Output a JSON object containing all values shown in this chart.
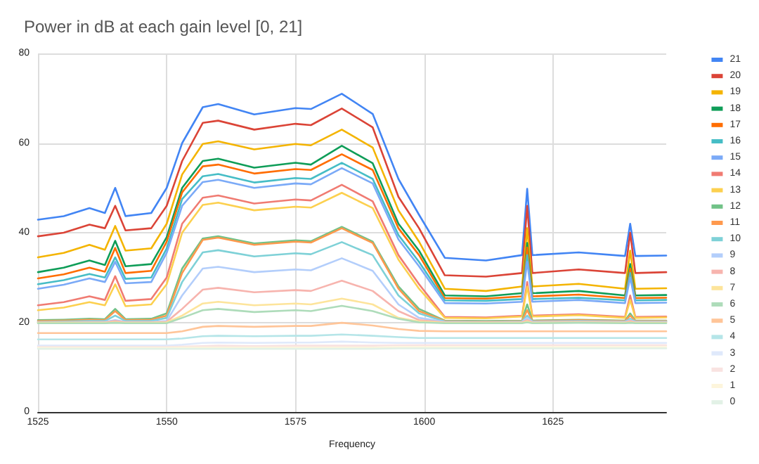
{
  "chart_data": {
    "type": "line",
    "title": "Power in dB at each gain level [0, 21]",
    "xlabel": "Frequency",
    "x": [
      1525,
      1530,
      1535,
      1538,
      1540,
      1542,
      1547,
      1550,
      1553,
      1557,
      1560,
      1567,
      1575,
      1578,
      1584,
      1590,
      1595,
      1599,
      1604,
      1612,
      1619,
      1620,
      1621,
      1630,
      1639,
      1640,
      1641,
      1647
    ],
    "xlim": [
      1525,
      1647
    ],
    "xticks": [
      1525,
      1550,
      1575,
      1600,
      1625
    ],
    "ylim": [
      0,
      80
    ],
    "yticks": [
      0,
      20,
      40,
      60,
      80
    ],
    "grid": true,
    "legend": "right",
    "marker": "none",
    "line_style": "solid",
    "series": [
      {
        "name": "21",
        "color": "#4285f4",
        "values": [
          42.9,
          43.7,
          45.5,
          44.4,
          50,
          43.7,
          44.4,
          50,
          60,
          68,
          68.7,
          66.4,
          67.8,
          67.6,
          71,
          66.5,
          52,
          44,
          34.4,
          33.8,
          35,
          49.8,
          35,
          35.6,
          34.8,
          42,
          34.8,
          34.9
        ]
      },
      {
        "name": "20",
        "color": "#db4437",
        "values": [
          39.2,
          40,
          41.8,
          41,
          46,
          40.5,
          41,
          46,
          56,
          64.5,
          65,
          63,
          64.3,
          64,
          67.7,
          63.5,
          48,
          41,
          30.5,
          30.2,
          31,
          46,
          31,
          31.8,
          31,
          40,
          31,
          31.2
        ]
      },
      {
        "name": "19",
        "color": "#f4b400",
        "values": [
          34.5,
          35.5,
          37.3,
          36.2,
          41.5,
          36,
          36.5,
          42,
          53,
          59.8,
          60.4,
          58.6,
          59.8,
          59.5,
          63,
          59,
          45,
          38,
          27.5,
          27,
          28,
          41,
          28,
          28.6,
          27.5,
          36,
          27.5,
          27.6
        ]
      },
      {
        "name": "18",
        "color": "#0f9d58",
        "values": [
          31.2,
          32.2,
          33.8,
          32.8,
          38.2,
          32.5,
          33,
          39,
          50,
          56,
          56.5,
          54.5,
          55.6,
          55.2,
          59.4,
          55.5,
          42,
          36,
          26,
          25.8,
          26.5,
          37.7,
          26.5,
          27,
          26,
          33,
          26,
          26.1
        ]
      },
      {
        "name": "17",
        "color": "#ff6d01",
        "values": [
          29.8,
          30.7,
          32.2,
          31.3,
          36.6,
          31,
          31.5,
          38,
          49,
          54.8,
          55.2,
          53.2,
          54.2,
          54,
          57.5,
          54,
          41,
          35,
          25.4,
          25.3,
          25.8,
          36.7,
          25.8,
          26.2,
          25.4,
          32,
          25.4,
          25.5
        ]
      },
      {
        "name": "16",
        "color": "#46bdc6",
        "values": [
          28.5,
          29.4,
          30.8,
          30,
          34.5,
          29.7,
          30,
          36.5,
          47.5,
          52.6,
          53.1,
          51.2,
          52.2,
          52,
          55.6,
          52,
          39.5,
          33.5,
          24.9,
          24.8,
          25.2,
          35,
          25.2,
          25.5,
          24.9,
          31,
          24.9,
          25
        ]
      },
      {
        "name": "15",
        "color": "#7baaf7",
        "values": [
          27.5,
          28.4,
          29.8,
          29,
          33.5,
          28.7,
          29,
          35.5,
          46,
          51.3,
          51.8,
          50,
          51,
          50.8,
          54.4,
          51,
          38.5,
          32.5,
          24.3,
          24.2,
          24.6,
          33.5,
          24.6,
          25,
          24.3,
          30,
          24.3,
          24.4
        ]
      },
      {
        "name": "14",
        "color": "#f07b72",
        "values": [
          23.8,
          24.5,
          25.8,
          25,
          30.3,
          24.8,
          25.2,
          30,
          42,
          47.8,
          48.3,
          46.5,
          47.4,
          47.2,
          50.7,
          47,
          35,
          28.5,
          21.2,
          21.1,
          21.5,
          29,
          21.5,
          21.8,
          21.2,
          26,
          21.2,
          21.3
        ]
      },
      {
        "name": "13",
        "color": "#fcd04f",
        "values": [
          22.7,
          23.3,
          24.5,
          23.8,
          28.5,
          23.6,
          24,
          28.5,
          40,
          46.2,
          46.7,
          45,
          45.8,
          45.6,
          48.9,
          45.5,
          34,
          27.5,
          21,
          20.9,
          21.3,
          28,
          21.3,
          21.6,
          21,
          25,
          21,
          21.1
        ]
      },
      {
        "name": "12",
        "color": "#71c287",
        "values": [
          20.5,
          20.6,
          20.8,
          20.7,
          23,
          20.7,
          20.8,
          22,
          32,
          38.7,
          39.2,
          37.6,
          38.3,
          38.1,
          41.3,
          38,
          28,
          23,
          20.4,
          20.3,
          20.4,
          24,
          20.4,
          20.6,
          20.4,
          22,
          20.4,
          20.4
        ]
      },
      {
        "name": "11",
        "color": "#ff994d",
        "values": [
          20.3,
          20.4,
          20.6,
          20.5,
          22.5,
          20.5,
          20.6,
          21.5,
          31,
          38.4,
          38.9,
          37.3,
          38,
          37.8,
          41,
          37.7,
          27.5,
          22.5,
          20.3,
          20.2,
          20.3,
          22.7,
          20.3,
          20.5,
          20.3,
          21.5,
          20.3,
          20.3
        ]
      },
      {
        "name": "10",
        "color": "#7ed1d7",
        "values": [
          20.1,
          20.2,
          20.3,
          20.3,
          21.5,
          20.3,
          20.3,
          21,
          29,
          35.6,
          36.1,
          34.7,
          35.4,
          35.2,
          37.9,
          35,
          26,
          22,
          20.2,
          20.1,
          20.2,
          21.5,
          20.2,
          20.3,
          20.2,
          20.8,
          20.2,
          20.2
        ]
      },
      {
        "name": "9",
        "color": "#b3cefb",
        "values": [
          20,
          20,
          20.1,
          20.1,
          20.5,
          20.1,
          20.1,
          20.3,
          26,
          32,
          32.4,
          31.2,
          31.8,
          31.6,
          34.3,
          31.5,
          24,
          21,
          20.1,
          20,
          20.1,
          21,
          20.1,
          20.2,
          20.1,
          20.5,
          20.1,
          20.1
        ]
      },
      {
        "name": "8",
        "color": "#f7b4ae",
        "values": [
          20,
          20,
          20,
          20,
          20.3,
          20,
          20,
          20.1,
          23,
          27.3,
          27.7,
          26.7,
          27.2,
          27,
          29.3,
          27,
          22.5,
          20.5,
          20,
          20,
          20,
          20.5,
          20,
          20.1,
          20,
          20.3,
          20,
          20
        ]
      },
      {
        "name": "7",
        "color": "#fde49b",
        "values": [
          19.9,
          19.9,
          19.9,
          19.9,
          20,
          19.9,
          19.9,
          20,
          21.5,
          24.2,
          24.6,
          23.8,
          24.2,
          24,
          25.3,
          24,
          21,
          20.2,
          19.9,
          19.9,
          19.9,
          20.2,
          19.9,
          20,
          19.9,
          20,
          19.9,
          19.9
        ]
      },
      {
        "name": "6",
        "color": "#aedcba",
        "values": [
          19.8,
          19.8,
          19.8,
          19.8,
          19.9,
          19.8,
          19.8,
          19.8,
          21,
          22.7,
          23,
          22.3,
          22.7,
          22.5,
          23.7,
          22.5,
          20.8,
          20,
          19.8,
          19.8,
          19.8,
          20,
          19.8,
          19.9,
          19.8,
          19.9,
          19.8,
          19.8
        ]
      },
      {
        "name": "5",
        "color": "#ffc599",
        "values": [
          17.6,
          17.6,
          17.6,
          17.6,
          17.6,
          17.6,
          17.6,
          17.6,
          18,
          19,
          19.2,
          19,
          19.2,
          19.2,
          19.9,
          19.3,
          18.5,
          18.1,
          18,
          18,
          18,
          18,
          18,
          18,
          18,
          18,
          18,
          18
        ]
      },
      {
        "name": "4",
        "color": "#b5e5e8",
        "values": [
          16.2,
          16.2,
          16.2,
          16.2,
          16.2,
          16.2,
          16.2,
          16.2,
          16.4,
          16.9,
          17,
          16.9,
          17,
          17,
          17.3,
          17,
          16.7,
          16.5,
          16.5,
          16.5,
          16.5,
          16.5,
          16.5,
          16.5,
          16.5,
          16.5,
          16.5,
          16.5
        ]
      },
      {
        "name": "3",
        "color": "#dfe9fb",
        "values": [
          14.8,
          14.8,
          14.8,
          14.8,
          14.8,
          14.8,
          14.8,
          14.8,
          15,
          15.4,
          15.5,
          15.4,
          15.5,
          15.5,
          15.7,
          15.5,
          15.4,
          15.4,
          15.4,
          15.4,
          15.4,
          15.4,
          15.4,
          15.4,
          15.4,
          15.4,
          15.4,
          15.4
        ]
      },
      {
        "name": "2",
        "color": "#f9e3e1",
        "values": [
          14.5,
          14.5,
          14.5,
          14.5,
          14.5,
          14.5,
          14.5,
          14.5,
          14.6,
          14.7,
          14.8,
          14.7,
          14.8,
          14.8,
          14.8,
          14.8,
          14.9,
          14.9,
          14.9,
          14.9,
          14.9,
          14.9,
          14.9,
          14.9,
          14.9,
          14.9,
          14.9,
          14.9
        ]
      },
      {
        "name": "1",
        "color": "#fdf5dc",
        "values": [
          14.3,
          14.3,
          14.3,
          14.3,
          14.3,
          14.3,
          14.3,
          14.3,
          14.4,
          14.4,
          14.4,
          14.4,
          14.4,
          14.4,
          14.4,
          14.4,
          14.5,
          14.5,
          14.5,
          14.5,
          14.5,
          14.5,
          14.5,
          14.5,
          14.5,
          14.5,
          14.5,
          14.5
        ]
      },
      {
        "name": "0",
        "color": "#e2f1e6",
        "values": [
          14.1,
          14.1,
          14.1,
          14.1,
          14.1,
          14.1,
          14.1,
          14.1,
          14.1,
          14.1,
          14.1,
          14.1,
          14.1,
          14.1,
          14.1,
          14.1,
          14.2,
          14.2,
          14.2,
          14.2,
          14.2,
          14.2,
          14.2,
          14.2,
          14.2,
          14.2,
          14.2,
          14.2
        ]
      }
    ]
  }
}
